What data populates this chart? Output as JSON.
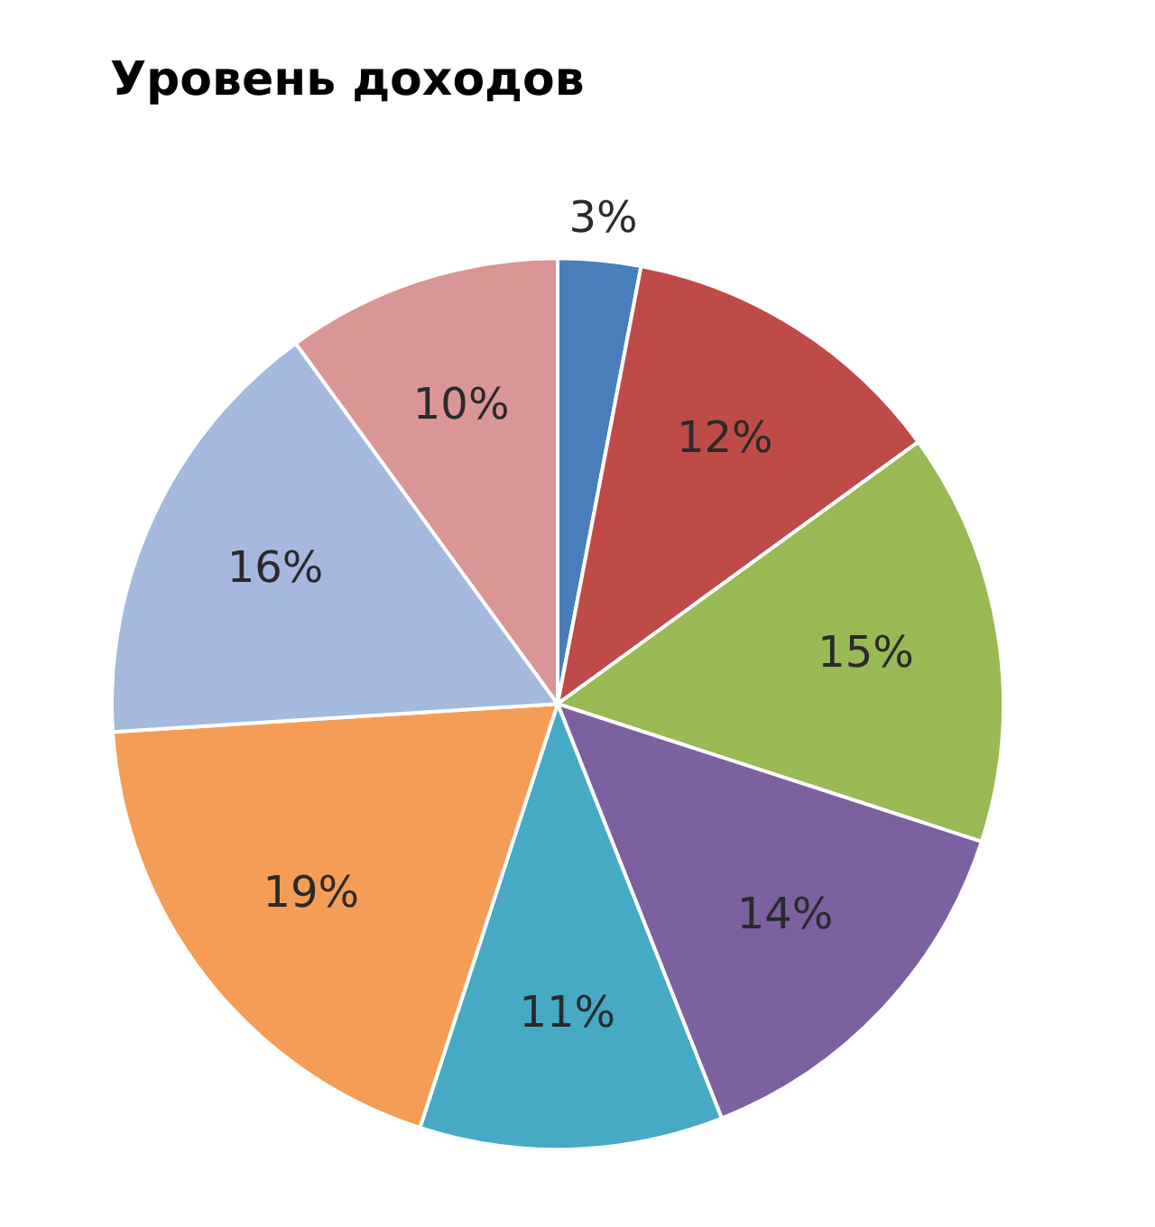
{
  "chart_data": {
    "type": "pie",
    "title": "Уровень доходов",
    "categories": [
      null,
      null,
      null,
      null,
      null,
      null,
      null,
      null
    ],
    "values": [
      3,
      12,
      15,
      14,
      11,
      19,
      16,
      10
    ],
    "colors": [
      "#4a7ebb",
      "#be4b48",
      "#98b954",
      "#7d60a0",
      "#46aac5",
      "#f59d56",
      "#a5b8de",
      "#d99694"
    ],
    "value_labels": [
      "3%",
      "12%",
      "15%",
      "14%",
      "11%",
      "19%",
      "16%",
      "10%"
    ],
    "legend": false
  }
}
